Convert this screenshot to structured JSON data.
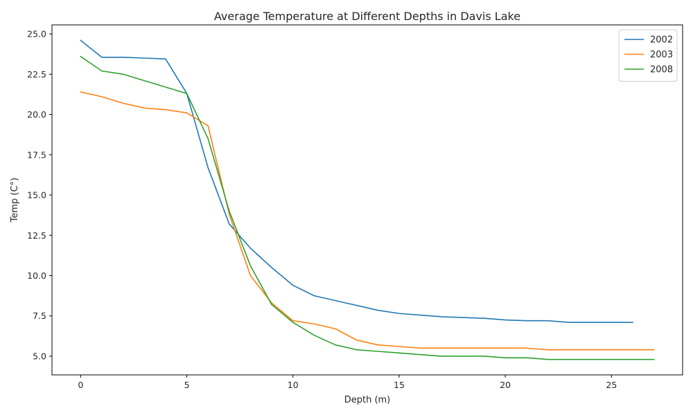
{
  "chart_data": {
    "type": "line",
    "title": "Average Temperature at Different Depths in Davis Lake",
    "xlabel": "Depth (m)",
    "ylabel": "Temp (C°)",
    "xlim": [
      -1.35,
      28.35
    ],
    "ylim": [
      3.84,
      25.56
    ],
    "xticks": [
      0,
      5,
      10,
      15,
      20,
      25
    ],
    "xtick_labels": [
      "0",
      "5",
      "10",
      "15",
      "20",
      "25"
    ],
    "yticks": [
      5.0,
      7.5,
      10.0,
      12.5,
      15.0,
      17.5,
      20.0,
      22.5,
      25.0
    ],
    "ytick_labels": [
      "5.0",
      "7.5",
      "10.0",
      "12.5",
      "15.0",
      "17.5",
      "20.0",
      "22.5",
      "25.0"
    ],
    "grid": false,
    "legend_position": "top-right",
    "series": [
      {
        "name": "2002",
        "color": "#1f77b4",
        "x": [
          0,
          1,
          2,
          3,
          4,
          5,
          6,
          7,
          8,
          9,
          10,
          11,
          12,
          13,
          14,
          15,
          16,
          17,
          18,
          19,
          20,
          21,
          22,
          23,
          24,
          25,
          26
        ],
        "values": [
          24.6,
          23.55,
          23.55,
          23.5,
          23.45,
          21.3,
          16.7,
          13.2,
          11.7,
          10.5,
          9.4,
          8.75,
          8.45,
          8.15,
          7.85,
          7.65,
          7.55,
          7.45,
          7.4,
          7.35,
          7.25,
          7.2,
          7.2,
          7.1,
          7.1,
          7.1,
          7.1
        ]
      },
      {
        "name": "2003",
        "color": "#ff7f0e",
        "x": [
          0,
          1,
          2,
          3,
          4,
          5,
          6,
          7,
          8,
          9,
          10,
          11,
          12,
          13,
          14,
          15,
          16,
          17,
          18,
          19,
          20,
          21,
          22,
          23,
          24,
          25,
          26,
          27
        ],
        "values": [
          21.4,
          21.1,
          20.7,
          20.4,
          20.3,
          20.1,
          19.3,
          13.8,
          10.0,
          8.3,
          7.2,
          7.0,
          6.7,
          6.0,
          5.7,
          5.6,
          5.5,
          5.5,
          5.5,
          5.5,
          5.5,
          5.5,
          5.4,
          5.4,
          5.4,
          5.4,
          5.4,
          5.4
        ]
      },
      {
        "name": "2008",
        "color": "#2ca02c",
        "x": [
          0,
          1,
          2,
          3,
          4,
          5,
          6,
          7,
          8,
          9,
          10,
          11,
          12,
          13,
          14,
          15,
          16,
          17,
          18,
          19,
          20,
          21,
          22,
          23,
          24,
          25,
          26,
          27
        ],
        "values": [
          23.6,
          22.7,
          22.5,
          22.1,
          21.7,
          21.3,
          18.5,
          14.0,
          10.6,
          8.2,
          7.1,
          6.3,
          5.7,
          5.4,
          5.3,
          5.2,
          5.1,
          5.0,
          5.0,
          5.0,
          4.9,
          4.9,
          4.8,
          4.8,
          4.8,
          4.8,
          4.8,
          4.8
        ]
      }
    ]
  }
}
